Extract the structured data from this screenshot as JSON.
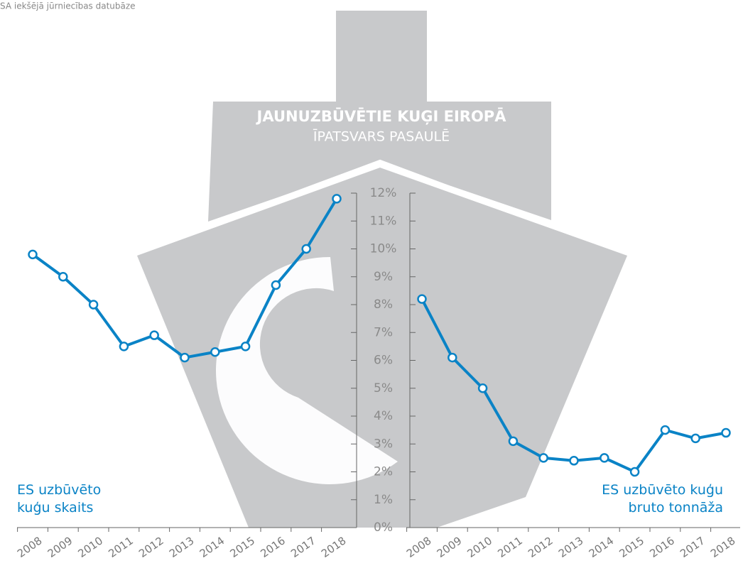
{
  "chart_data": {
    "type": "line",
    "title": "JAUNUZBŪVĒTIE KUĢI EIROPĀ",
    "subtitle": "ĪPATSVARS PASAULĒ",
    "source": "SA iekšējā jūrniecības datubāze",
    "ylim": [
      0,
      12
    ],
    "yticks": [
      {
        "value": 0,
        "label": "0%"
      },
      {
        "value": 1,
        "label": "1%"
      },
      {
        "value": 2,
        "label": "2%"
      },
      {
        "value": 3,
        "label": "3%"
      },
      {
        "value": 4,
        "label": "4%"
      },
      {
        "value": 5,
        "label": "5%"
      },
      {
        "value": 6,
        "label": "6%"
      },
      {
        "value": 7,
        "label": "7%"
      },
      {
        "value": 8,
        "label": "8%"
      },
      {
        "value": 9,
        "label": "9%"
      },
      {
        "value": 10,
        "label": "10%"
      },
      {
        "value": 11,
        "label": "11%"
      },
      {
        "value": 12,
        "label": "12%"
      }
    ],
    "categories": [
      "2008",
      "2009",
      "2010",
      "2011",
      "2012",
      "2013",
      "2014",
      "2015",
      "2016",
      "2017",
      "2018"
    ],
    "series": [
      {
        "name": "ES uzbūvēto\nkuģu skaits",
        "color": "#0a83c6",
        "values": [
          9.8,
          9.0,
          8.0,
          6.5,
          6.9,
          6.1,
          6.3,
          6.5,
          8.7,
          10.0,
          11.8
        ]
      },
      {
        "name": "ES uzbūvēto kuģu\nbruto tonnāža",
        "color": "#0a83c6",
        "values": [
          8.2,
          6.1,
          5.0,
          3.1,
          2.5,
          2.4,
          2.5,
          2.0,
          3.5,
          3.2,
          3.4
        ]
      }
    ]
  }
}
